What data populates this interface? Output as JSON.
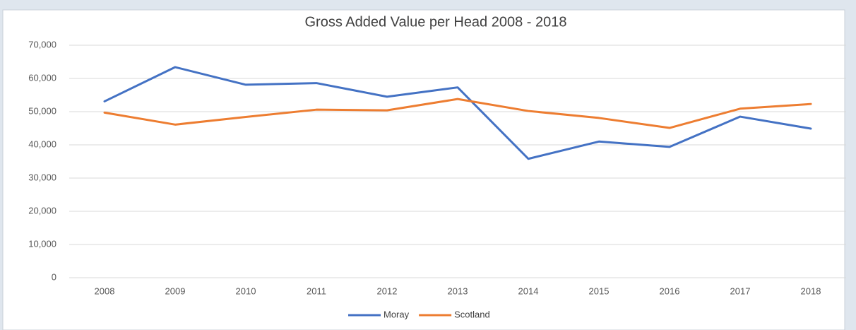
{
  "chart_data": {
    "type": "line",
    "title": "Gross Added Value per Head 2008 - 2018",
    "categories": [
      "2008",
      "2009",
      "2010",
      "2011",
      "2012",
      "2013",
      "2014",
      "2015",
      "2016",
      "2017",
      "2018"
    ],
    "series": [
      {
        "name": "Moray",
        "color": "#4472c4",
        "values": [
          53100,
          63400,
          58100,
          58600,
          54500,
          57300,
          35800,
          41000,
          39400,
          48500,
          44900
        ]
      },
      {
        "name": "Scotland",
        "color": "#ed7d31",
        "values": [
          49700,
          46100,
          48400,
          50600,
          50400,
          53800,
          50200,
          48100,
          45100,
          50900,
          52300
        ]
      }
    ],
    "ylim": [
      0,
      70000
    ],
    "yticks": [
      0,
      {
        "value": 10000,
        "label": "10,000"
      },
      {
        "value": 20000,
        "label": "20,000"
      },
      {
        "value": 30000,
        "label": "30,000"
      },
      {
        "value": 40000,
        "label": "40,000"
      },
      {
        "value": 50000,
        "label": "50,000"
      },
      {
        "value": 60000,
        "label": "60,000"
      },
      {
        "value": 70000,
        "label": "70,000"
      }
    ],
    "grid": true,
    "legend": "bottom"
  }
}
